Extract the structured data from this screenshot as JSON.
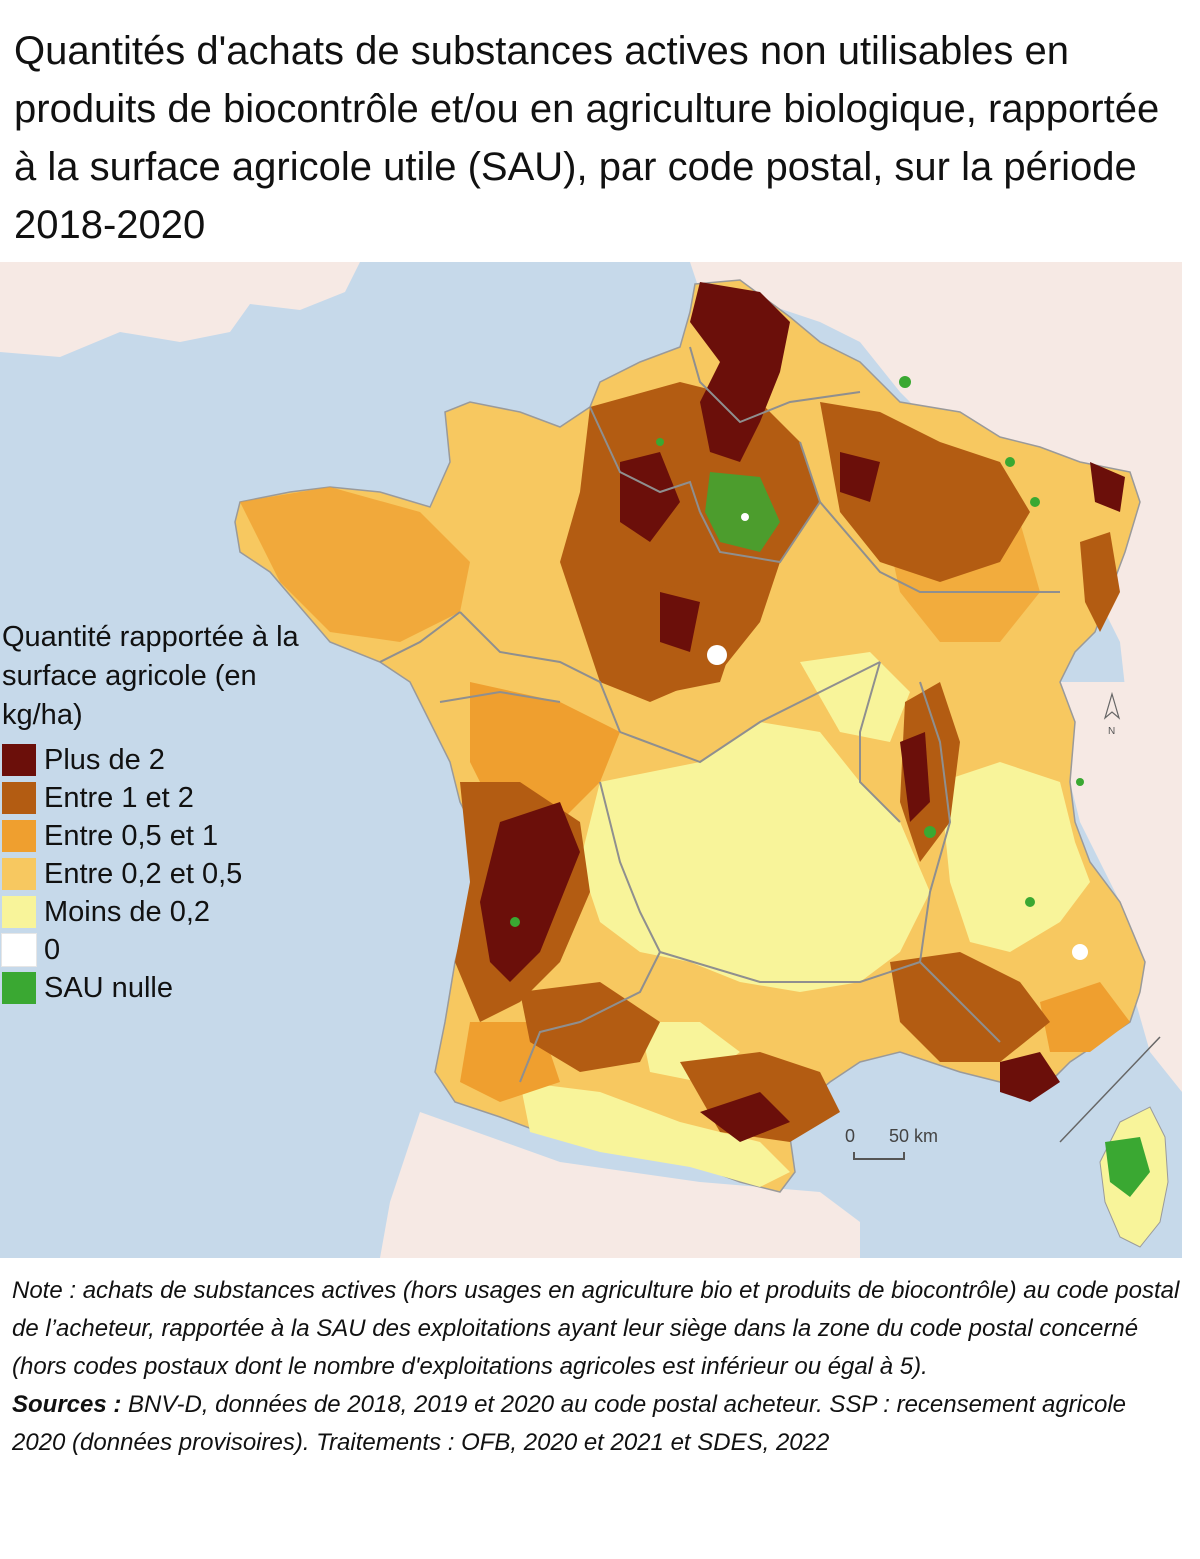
{
  "title": "Quantités d'achats de substances actives non utilisables en produits de biocontrôle et/ou en agriculture biologique, rapportée à la surface agricole utile (SAU), par code postal, sur la période 2018-2020",
  "legend": {
    "title": "Quantité rapportée à la surface agricole (en kg/ha)",
    "items": [
      {
        "label": "Plus de 2",
        "color": "#6b0f0a"
      },
      {
        "label": "Entre 1 et 2",
        "color": "#b35c12"
      },
      {
        "label": "Entre 0,5 et 1",
        "color": "#ef9f2f"
      },
      {
        "label": "Entre 0,2 et 0,5",
        "color": "#f7c860"
      },
      {
        "label": "Moins de 0,2",
        "color": "#f8f49a"
      },
      {
        "label": "0",
        "color": "#ffffff"
      },
      {
        "label": "SAU nulle",
        "color": "#3aa832"
      }
    ]
  },
  "scale_bar": {
    "zero": "0",
    "fifty": "50 km"
  },
  "north_label": "N",
  "footnote": {
    "note": "Note : achats de substances actives (hors usages en agriculture bio et produits de biocontrôle) au code postal de l’acheteur, rapportée à la SAU des exploitations ayant leur siège dans la zone du code postal concerné (hors codes postaux dont le nombre d'exploitations agricoles est inférieur ou égal à 5).",
    "sources_label": "Sources :",
    "sources": " BNV-D, données de 2018, 2019 et 2020 au code postal acheteur. SSP : recensement agricole 2020 (données provisoires). Traitements : OFB, 2020 et 2021 et SDES, 2022"
  },
  "colors": {
    "sea": "#c6d9ea",
    "neighbour_land": "#f6e9e4",
    "region_border": "#8f8f8f"
  }
}
